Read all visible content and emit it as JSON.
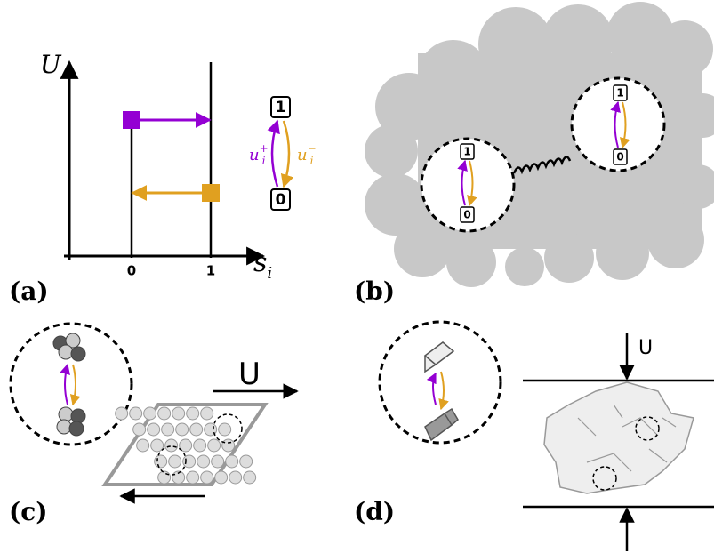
{
  "panels": [
    {
      "label": "(a)",
      "y_axis": "U",
      "x_axis": {
        "base": "s",
        "sub": "i"
      },
      "xticks": [
        "0",
        "1"
      ],
      "states": [
        "1",
        "0"
      ],
      "rates": [
        {
          "base": "u",
          "sub": "i",
          "sup": "+"
        },
        {
          "base": "u",
          "sub": "i",
          "sup": "−"
        }
      ]
    },
    {
      "label": "(b)",
      "states": [
        "1",
        "0"
      ]
    },
    {
      "label": "(c)",
      "field": "U"
    },
    {
      "label": "(d)",
      "field": "U"
    }
  ]
}
